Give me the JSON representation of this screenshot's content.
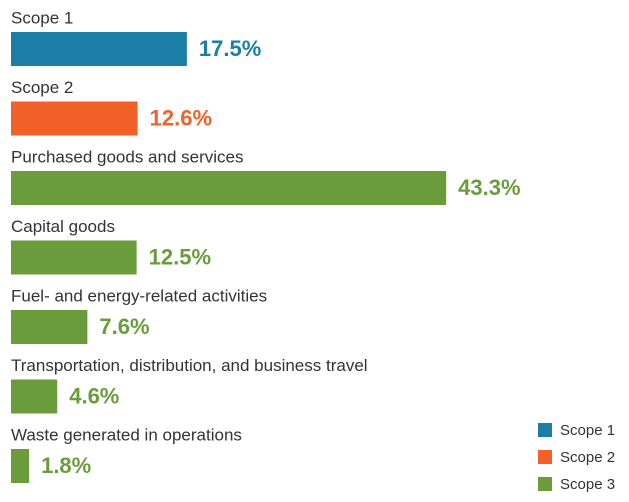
{
  "chart_data": {
    "type": "bar",
    "orientation": "horizontal",
    "categories": [
      "Scope 1",
      "Scope 2",
      "Purchased goods and services",
      "Capital goods",
      "Fuel- and energy-related activities",
      "Transportation, distribution, and business travel",
      "Waste generated in operations"
    ],
    "series": [
      {
        "name": "Scope 1",
        "color": "#1a7ea6",
        "values": [
          17.5,
          null,
          null,
          null,
          null,
          null,
          null
        ],
        "value_labels": [
          "17.5%",
          null,
          null,
          null,
          null,
          null,
          null
        ]
      },
      {
        "name": "Scope 2",
        "color": "#f2612a",
        "values": [
          null,
          12.6,
          null,
          null,
          null,
          null,
          null
        ],
        "value_labels": [
          null,
          "12.6%",
          null,
          null,
          null,
          null,
          null
        ]
      },
      {
        "name": "Scope 3",
        "color": "#6b9c3c",
        "values": [
          null,
          null,
          43.3,
          12.5,
          7.6,
          4.6,
          1.8
        ],
        "value_labels": [
          null,
          null,
          "43.3%",
          "12.5%",
          "7.6%",
          "4.6%",
          "1.8%"
        ]
      }
    ],
    "legend": "bottom-right"
  }
}
